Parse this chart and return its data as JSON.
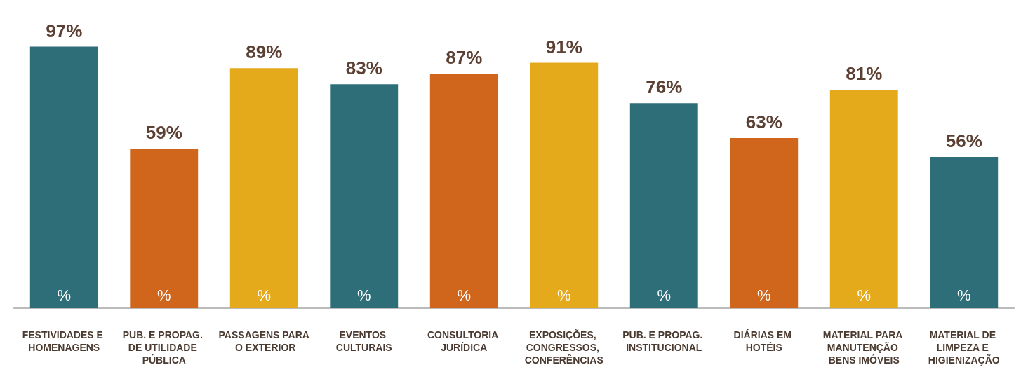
{
  "chart_data": {
    "type": "bar",
    "categories": [
      "FESTIVIDADES E HOMENAGENS",
      "PUB. E PROPAG. DE UTILIDADE PÚBLICA",
      "PASSAGENS PARA O EXTERIOR",
      "EVENTOS CULTURAIS",
      "CONSULTORIA JURÍDICA",
      "EXPOSIÇÕES, CONGRESSOS, CONFERÊNCIAS",
      "PUB. E PROPAG. INSTITUCIONAL",
      "DIÁRIAS EM HOTÉIS",
      "MATERIAL PARA MANUTENÇÃO BENS IMÓVEIS",
      "MATERIAL DE LIMPEZA E HIGIENIZAÇÃO"
    ],
    "values": [
      97,
      59,
      89,
      83,
      87,
      91,
      76,
      63,
      81,
      56
    ],
    "colors": [
      "#2e6e78",
      "#d0661c",
      "#e5a91c",
      "#2e6e78",
      "#d0661c",
      "#e5a91c",
      "#2e6e78",
      "#d0661c",
      "#e5a91c",
      "#2e6e78"
    ],
    "value_labels": [
      "97%",
      "59%",
      "89%",
      "83%",
      "87%",
      "91%",
      "76%",
      "63%",
      "81%",
      "56%"
    ],
    "annotations": [
      {
        "text": "%",
        "x": "FESTIVIDADES E HOMENAGENS",
        "y": 0
      },
      {
        "text": "%",
        "x": "PUB. E PROPAG. DE UTILIDADE PÚBLICA",
        "y": 0
      },
      {
        "text": "%",
        "x": "PASSAGENS PARA O EXTERIOR",
        "y": 0
      },
      {
        "text": "%",
        "x": "EVENTOS CULTURAIS",
        "y": 0
      },
      {
        "text": "%",
        "x": "CONSULTORIA JURÍDICA",
        "y": 0
      },
      {
        "text": "%",
        "x": "EXPOSIÇÕES, CONGRESSOS, CONFERÊNCIAS",
        "y": 0
      },
      {
        "text": "%",
        "x": "PUB. E PROPAG. INSTITUCIONAL",
        "y": 0
      },
      {
        "text": "%",
        "x": "DIÁRIAS EM HOTÉIS",
        "y": 0
      },
      {
        "text": "%",
        "x": "MATERIAL PARA MANUTENÇÃO BENS IMÓVEIS",
        "y": 0
      },
      {
        "text": "%",
        "x": "MATERIAL DE LIMPEZA E HIGIENIZAÇÃO",
        "y": 0
      }
    ],
    "grid": false
  }
}
